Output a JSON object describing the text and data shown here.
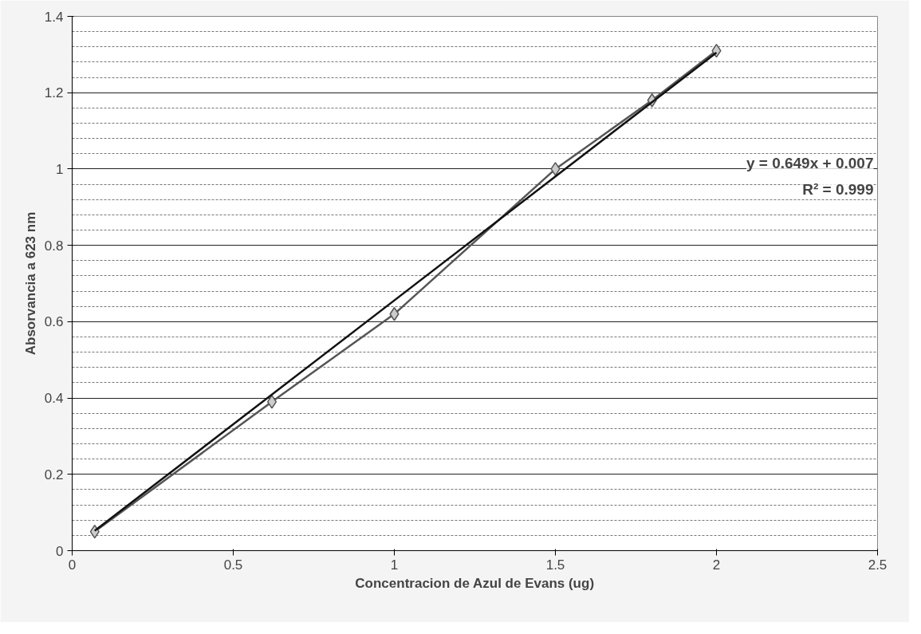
{
  "chart_data": {
    "type": "line",
    "xlabel": "Concentracion de Azul de Evans (ug)",
    "ylabel": "Absorvancia a 623 nm",
    "series": [
      {
        "color": "#555555",
        "marker": "diamond",
        "x": [
          0.07,
          0.62,
          1.0,
          1.5,
          1.8,
          2.0
        ],
        "values": [
          0.05,
          0.39,
          0.62,
          1.0,
          1.18,
          1.31
        ]
      },
      {
        "color": "#111111",
        "marker": "none",
        "x": [
          0.07,
          2.0
        ],
        "values": [
          0.052,
          1.305
        ]
      }
    ],
    "annotations": [
      "y = 0.649x + 0.007",
      "R² = 0.999"
    ],
    "xlim": [
      0,
      2.5
    ],
    "xticks": [
      0,
      0.5,
      1,
      1.5,
      2,
      2.5
    ],
    "ylim": [
      0,
      1.4
    ],
    "yticks": [
      0,
      0.2,
      0.4,
      0.6,
      0.8,
      1,
      1.2,
      1.4
    ],
    "grid": "y"
  }
}
